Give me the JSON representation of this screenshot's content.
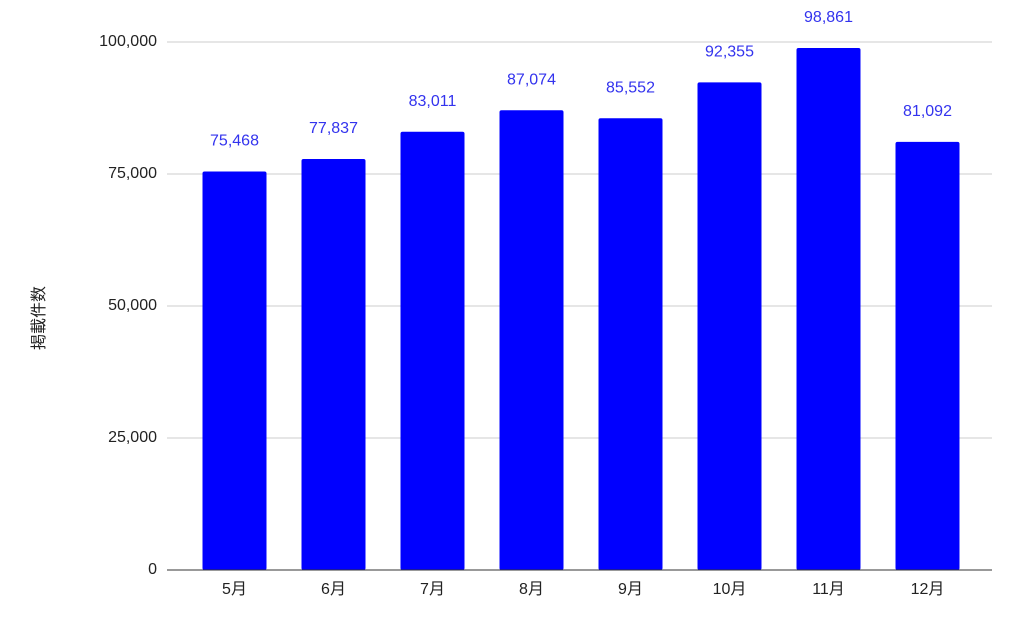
{
  "chart_data": {
    "type": "bar",
    "y_label": "掲載件数",
    "categories": [
      "5月",
      "6月",
      "7月",
      "8月",
      "9月",
      "10月",
      "11月",
      "12月"
    ],
    "values": [
      75468,
      77837,
      83011,
      87074,
      85552,
      92355,
      98861,
      81092
    ],
    "value_labels": [
      "75,468",
      "77,837",
      "83,011",
      "87,074",
      "85,552",
      "92,355",
      "98,861",
      "81,092"
    ],
    "color": "#0000ff",
    "label_color": "#3333ee",
    "ylim": [
      0,
      100000
    ],
    "yticks": [
      0,
      {
        "value": 25000,
        "label": "25,000"
      },
      {
        "value": 50000,
        "label": "50,000"
      },
      {
        "value": 75000,
        "label": "75,000"
      },
      {
        "value": 100000,
        "label": "100,000"
      }
    ],
    "grid": true
  }
}
